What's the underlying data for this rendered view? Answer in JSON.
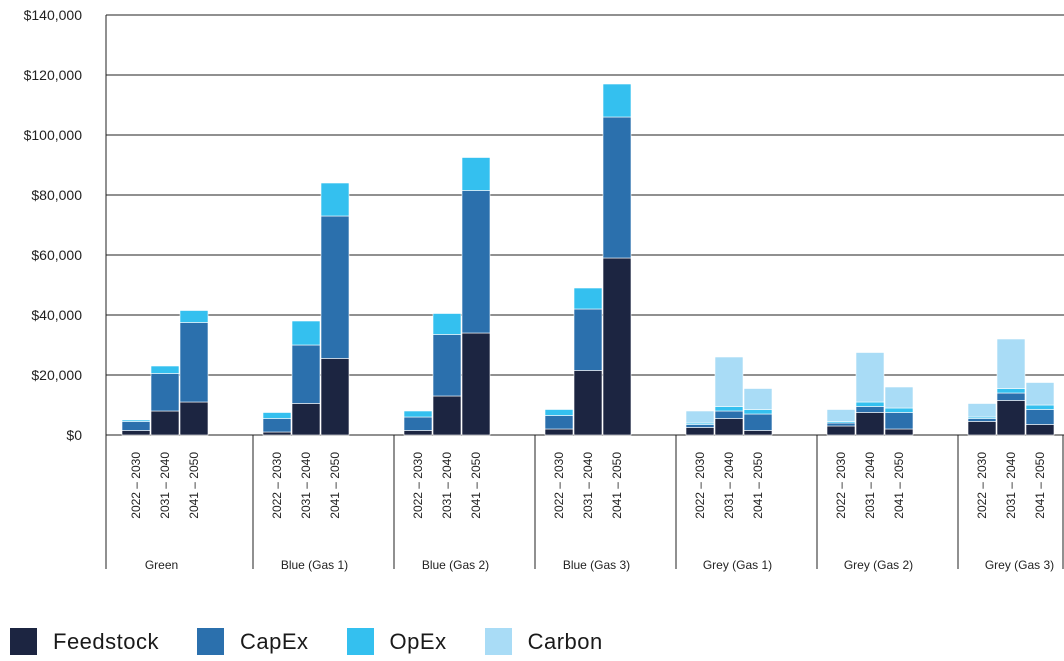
{
  "chart_data": {
    "type": "bar",
    "stacked": true,
    "title": "",
    "xlabel": "",
    "ylabel": "",
    "ylim": [
      0,
      140000
    ],
    "y_ticks": [
      "$0",
      "$20,000",
      "$40,000",
      "$60,000",
      "$80,000",
      "$100,000",
      "$120,000",
      "$140,000"
    ],
    "grid": "horizontal",
    "legend_position": "bottom-left",
    "groups": [
      {
        "name": "Green",
        "periods": [
          "2022 – 2030",
          "2031 – 2040",
          "2041 – 2050"
        ]
      },
      {
        "name": "Blue (Gas 1)",
        "periods": [
          "2022 – 2030",
          "2031 – 2040",
          "2041 – 2050"
        ]
      },
      {
        "name": "Blue (Gas 2)",
        "periods": [
          "2022 – 2030",
          "2031 – 2040",
          "2041 – 2050"
        ]
      },
      {
        "name": "Blue (Gas 3)",
        "periods": [
          "2022 – 2030",
          "2031 – 2040",
          "2041 – 2050"
        ]
      },
      {
        "name": "Grey (Gas 1)",
        "periods": [
          "2022 – 2030",
          "2031 – 2040",
          "2041 – 2050"
        ]
      },
      {
        "name": "Grey (Gas 2)",
        "periods": [
          "2022 – 2030",
          "2031 – 2040",
          "2041 – 2050"
        ]
      },
      {
        "name": "Grey (Gas 3)",
        "periods": [
          "2022 – 2030",
          "2031 – 2040",
          "2041 – 2050"
        ]
      }
    ],
    "series": [
      {
        "name": "Feedstock",
        "color": "#1c2541",
        "values": [
          [
            1500,
            8000,
            11000
          ],
          [
            1000,
            10500,
            25500
          ],
          [
            1500,
            13000,
            34000
          ],
          [
            2000,
            21500,
            59000
          ],
          [
            2500,
            5500,
            1500
          ],
          [
            3000,
            7500,
            2000
          ],
          [
            4500,
            11500,
            3500
          ]
        ]
      },
      {
        "name": "CapEx",
        "color": "#2b70ad",
        "values": [
          [
            3000,
            12500,
            26500
          ],
          [
            4500,
            19500,
            47500
          ],
          [
            4500,
            20500,
            47500
          ],
          [
            4500,
            20500,
            47000
          ],
          [
            1000,
            2500,
            5500
          ],
          [
            1000,
            2000,
            5500
          ],
          [
            1000,
            2500,
            5000
          ]
        ]
      },
      {
        "name": "OpEx",
        "color": "#34c0ef",
        "values": [
          [
            500,
            2500,
            4000
          ],
          [
            2000,
            8000,
            11000
          ],
          [
            2000,
            7000,
            11000
          ],
          [
            2000,
            7000,
            11000
          ],
          [
            500,
            1500,
            1500
          ],
          [
            500,
            1500,
            1500
          ],
          [
            500,
            1500,
            1500
          ]
        ]
      },
      {
        "name": "Carbon",
        "color": "#a9dcf6",
        "values": [
          [
            0,
            0,
            0
          ],
          [
            0,
            0,
            0
          ],
          [
            0,
            0,
            0
          ],
          [
            0,
            0,
            0
          ],
          [
            4000,
            16500,
            7000
          ],
          [
            4000,
            16500,
            7000
          ],
          [
            4500,
            16500,
            7500
          ]
        ]
      }
    ]
  }
}
